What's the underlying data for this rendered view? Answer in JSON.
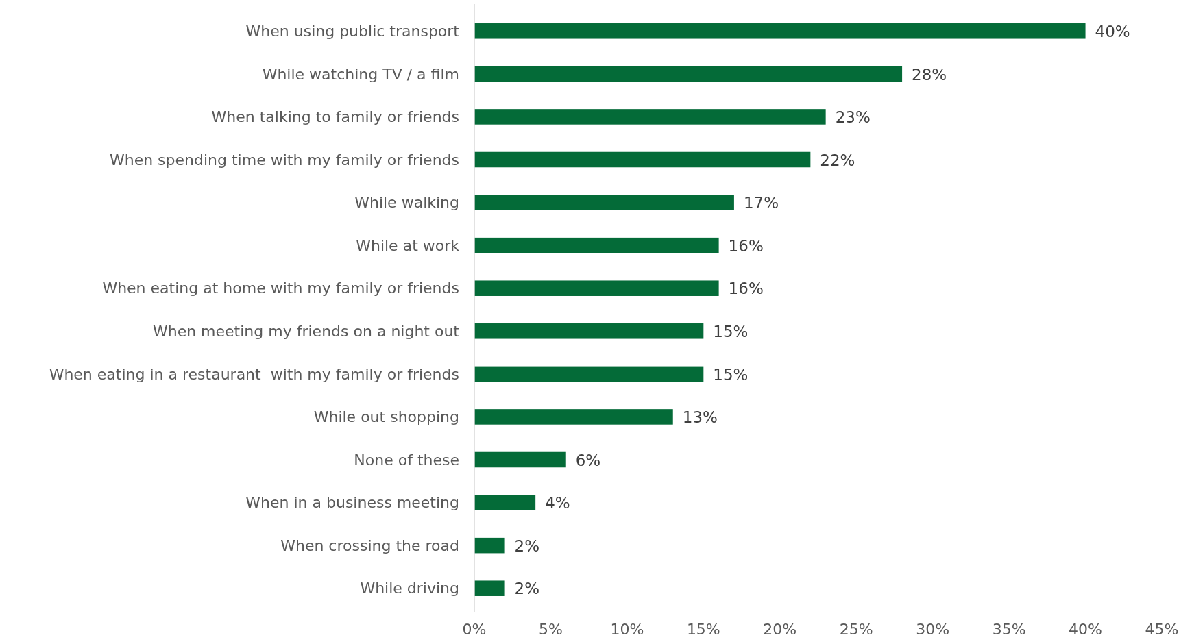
{
  "chart_data": {
    "type": "bar",
    "orientation": "horizontal",
    "categories": [
      "When using public transport",
      "While watching TV / a film",
      "When talking to family or friends",
      "When spending time with my family or friends",
      "While walking",
      "While at work",
      "When eating at home with my family or friends",
      "When meeting my friends on a night out",
      "When eating in a restaurant  with my family or friends",
      "While out shopping",
      "None of these",
      "When in a business meeting",
      "When crossing the road",
      "While driving"
    ],
    "values": [
      40,
      28,
      23,
      22,
      17,
      16,
      16,
      15,
      15,
      13,
      6,
      4,
      2,
      2
    ],
    "value_labels": [
      "40%",
      "28%",
      "23%",
      "22%",
      "17%",
      "16%",
      "16%",
      "15%",
      "15%",
      "13%",
      "6%",
      "4%",
      "2%",
      "2%"
    ],
    "color": "#046b38",
    "xlim": [
      0,
      45
    ],
    "xticks": [
      {
        "value": 0,
        "label": "0%"
      },
      {
        "value": 5,
        "label": "5%"
      },
      {
        "value": 10,
        "label": "10%"
      },
      {
        "value": 15,
        "label": "15%"
      },
      {
        "value": 20,
        "label": "20%"
      },
      {
        "value": 25,
        "label": "25%"
      },
      {
        "value": 30,
        "label": "30%"
      },
      {
        "value": 35,
        "label": "35%"
      },
      {
        "value": 40,
        "label": "40%"
      },
      {
        "value": 45,
        "label": "45%"
      }
    ],
    "grid": false
  }
}
